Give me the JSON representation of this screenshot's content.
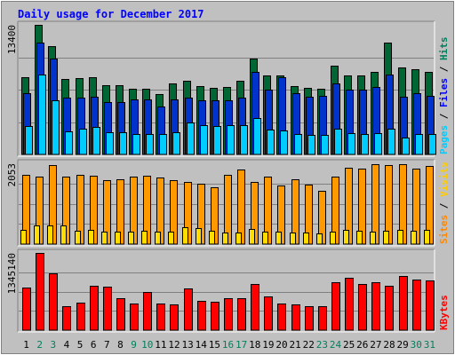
{
  "chart_data": {
    "type": "bar",
    "title": "Daily usage for December 2017",
    "days": [
      "1",
      "2",
      "3",
      "4",
      "5",
      "6",
      "7",
      "8",
      "9",
      "10",
      "11",
      "12",
      "13",
      "14",
      "15",
      "16",
      "17",
      "18",
      "19",
      "20",
      "21",
      "22",
      "23",
      "24",
      "25",
      "26",
      "27",
      "28",
      "29",
      "30",
      "31"
    ],
    "weekend_days": [
      "2",
      "3",
      "9",
      "10",
      "16",
      "17",
      "23",
      "24",
      "30",
      "31"
    ],
    "panels": [
      {
        "name": "hits-files-pages",
        "y_max_label": "13400",
        "y_max": 13400,
        "right_labels": [
          "Pages",
          "Files",
          "Hits"
        ],
        "series": [
          {
            "name": "Hits",
            "color": "#006633",
            "values": [
              8000,
              13400,
              11200,
              7800,
              7900,
              8000,
              7200,
              7200,
              6800,
              6800,
              6200,
              7300,
              7600,
              7100,
              6900,
              7000,
              7600,
              9900,
              8200,
              8200,
              7100,
              6900,
              6800,
              9200,
              8200,
              8200,
              8500,
              11600,
              9000,
              8800,
              8500
            ]
          },
          {
            "name": "Files",
            "color": "#0033cc",
            "values": [
              6300,
              11600,
              9900,
              5900,
              5900,
              6000,
              5400,
              5400,
              5700,
              5700,
              5000,
              5700,
              5900,
              5600,
              5600,
              5600,
              5900,
              8500,
              6700,
              8000,
              6300,
              6000,
              6100,
              7300,
              6700,
              6700,
              7000,
              8300,
              6000,
              6300,
              6100
            ]
          },
          {
            "name": "Pages",
            "color": "#00ccff",
            "values": [
              2900,
              8300,
              5600,
              2400,
              2700,
              2800,
              2300,
              2300,
              2100,
              2100,
              2100,
              2300,
              3300,
              3000,
              2900,
              3000,
              3000,
              3800,
              2600,
              2500,
              2100,
              2000,
              2000,
              2700,
              2200,
              2100,
              2200,
              2700,
              1700,
              2100,
              2100
            ]
          }
        ]
      },
      {
        "name": "visits-sites",
        "y_max_label": "2053",
        "y_max": 2053,
        "right_labels": [
          "Sites",
          "Visits"
        ],
        "series": [
          {
            "name": "Visits",
            "color": "#ff9900",
            "values": [
              1750,
              1720,
              2000,
              1720,
              1760,
              1740,
              1620,
              1640,
              1720,
              1740,
              1700,
              1620,
              1590,
              1540,
              1450,
              1760,
              1900,
              1590,
              1710,
              1480,
              1640,
              1520,
              1360,
              1710,
              1940,
              1920,
              2020,
              2000,
              2020,
              1920,
              1990
            ]
          },
          {
            "name": "Sites",
            "color": "#ffdd00",
            "values": [
              360,
              480,
              480,
              470,
              330,
              350,
              310,
              320,
              310,
              330,
              320,
              310,
              420,
              400,
              330,
              290,
              300,
              380,
              310,
              310,
              300,
              290,
              270,
              320,
              350,
              330,
              320,
              330,
              350,
              330,
              350
            ]
          }
        ]
      },
      {
        "name": "kbytes",
        "y_max_label": "1345140",
        "y_max": 1345140,
        "right_labels": [
          "KBytes"
        ],
        "series": [
          {
            "name": "KBytes",
            "color": "#ff0000",
            "values": [
              744000,
              1345140,
              988000,
              420000,
              484000,
              768000,
              756000,
              560000,
              470000,
              670000,
              462000,
              444000,
              720000,
              508000,
              490000,
              560000,
              550000,
              810000,
              580000,
              470000,
              448000,
              415000,
              415000,
              830000,
              907000,
              810000,
              830000,
              780000,
              950000,
              880000,
              865000
            ]
          }
        ]
      }
    ]
  }
}
